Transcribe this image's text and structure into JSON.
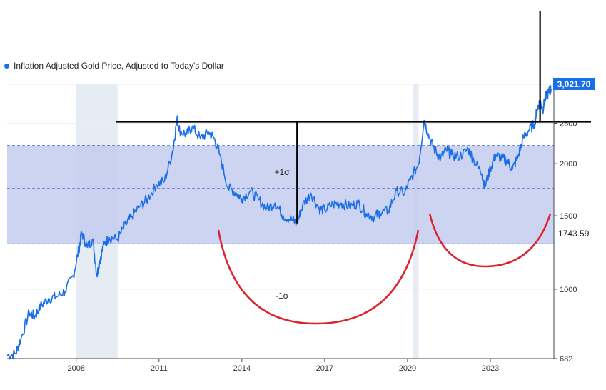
{
  "chart_data": {
    "type": "line",
    "title": "",
    "xlabel": "",
    "ylabel": "",
    "y_scale": "log",
    "ylim": [
      682,
      3100
    ],
    "xlim": [
      2005.5,
      2025.3
    ],
    "x_ticks": [
      "2008",
      "2011",
      "2014",
      "2017",
      "2020",
      "2023"
    ],
    "y_ticks": [
      "682",
      "1000",
      "1500",
      "2000",
      "2500"
    ],
    "legend": {
      "position": "top-left",
      "label": "Inflation Adjusted Gold Price, Adjusted to Today's Dollar"
    },
    "last_value_label": "3,021.70",
    "mean_label": "1743.59",
    "mean": 1743.59,
    "plus_sigma": 2210,
    "minus_sigma": 1285,
    "plus_sigma_label": "+1σ",
    "minus_sigma_label": "-1σ",
    "resistance_level": 2520,
    "recession_bands": [
      [
        2008.0,
        2009.5
      ],
      [
        2020.2,
        2020.4
      ]
    ],
    "series": [
      {
        "name": "Inflation Adjusted Gold Price, Adjusted to Today's Dollar",
        "points": [
          [
            2005.5,
            695
          ],
          [
            2005.8,
            700
          ],
          [
            2006.0,
            760
          ],
          [
            2006.3,
            880
          ],
          [
            2006.5,
            860
          ],
          [
            2006.7,
            910
          ],
          [
            2007.0,
            950
          ],
          [
            2007.3,
            960
          ],
          [
            2007.6,
            990
          ],
          [
            2007.9,
            1080
          ],
          [
            2008.1,
            1250
          ],
          [
            2008.2,
            1370
          ],
          [
            2008.4,
            1260
          ],
          [
            2008.6,
            1320
          ],
          [
            2008.75,
            1080
          ],
          [
            2008.85,
            1170
          ],
          [
            2009.0,
            1280
          ],
          [
            2009.2,
            1330
          ],
          [
            2009.5,
            1320
          ],
          [
            2009.8,
            1430
          ],
          [
            2010.0,
            1490
          ],
          [
            2010.3,
            1580
          ],
          [
            2010.6,
            1650
          ],
          [
            2010.9,
            1780
          ],
          [
            2011.2,
            1820
          ],
          [
            2011.5,
            2150
          ],
          [
            2011.65,
            2560
          ],
          [
            2011.75,
            2400
          ],
          [
            2012.0,
            2350
          ],
          [
            2012.2,
            2450
          ],
          [
            2012.5,
            2300
          ],
          [
            2012.8,
            2380
          ],
          [
            2013.0,
            2300
          ],
          [
            2013.2,
            2100
          ],
          [
            2013.5,
            1750
          ],
          [
            2013.8,
            1700
          ],
          [
            2014.0,
            1650
          ],
          [
            2014.3,
            1720
          ],
          [
            2014.6,
            1640
          ],
          [
            2014.9,
            1560
          ],
          [
            2015.2,
            1610
          ],
          [
            2015.5,
            1500
          ],
          [
            2015.8,
            1470
          ],
          [
            2016.0,
            1440
          ],
          [
            2016.2,
            1590
          ],
          [
            2016.5,
            1700
          ],
          [
            2016.8,
            1560
          ],
          [
            2017.0,
            1550
          ],
          [
            2017.3,
            1600
          ],
          [
            2017.6,
            1610
          ],
          [
            2017.9,
            1580
          ],
          [
            2018.2,
            1610
          ],
          [
            2018.5,
            1520
          ],
          [
            2018.8,
            1490
          ],
          [
            2019.0,
            1530
          ],
          [
            2019.3,
            1540
          ],
          [
            2019.6,
            1720
          ],
          [
            2019.9,
            1700
          ],
          [
            2020.1,
            1830
          ],
          [
            2020.4,
            2000
          ],
          [
            2020.6,
            2540
          ],
          [
            2020.8,
            2300
          ],
          [
            2021.0,
            2150
          ],
          [
            2021.2,
            2060
          ],
          [
            2021.4,
            2160
          ],
          [
            2021.6,
            2100
          ],
          [
            2021.9,
            2080
          ],
          [
            2022.2,
            2170
          ],
          [
            2022.4,
            2040
          ],
          [
            2022.7,
            1890
          ],
          [
            2022.8,
            1760
          ],
          [
            2023.0,
            1950
          ],
          [
            2023.2,
            2100
          ],
          [
            2023.4,
            2060
          ],
          [
            2023.6,
            2040
          ],
          [
            2023.8,
            1940
          ],
          [
            2024.0,
            2080
          ],
          [
            2024.2,
            2310
          ],
          [
            2024.4,
            2410
          ],
          [
            2024.6,
            2490
          ],
          [
            2024.7,
            2720
          ],
          [
            2024.8,
            2820
          ],
          [
            2024.9,
            2700
          ],
          [
            2025.0,
            2880
          ],
          [
            2025.1,
            2960
          ],
          [
            2025.2,
            3021.7
          ]
        ]
      }
    ]
  },
  "colors": {
    "line": "#1a6ee8",
    "sigma_band": "#c4cdee",
    "recession_band": "#e6ecf3",
    "sigma_line": "#2244bb",
    "annotation_black": "#000000",
    "annotation_red": "#e0202a",
    "last_value_bg": "#1a6ee8"
  }
}
